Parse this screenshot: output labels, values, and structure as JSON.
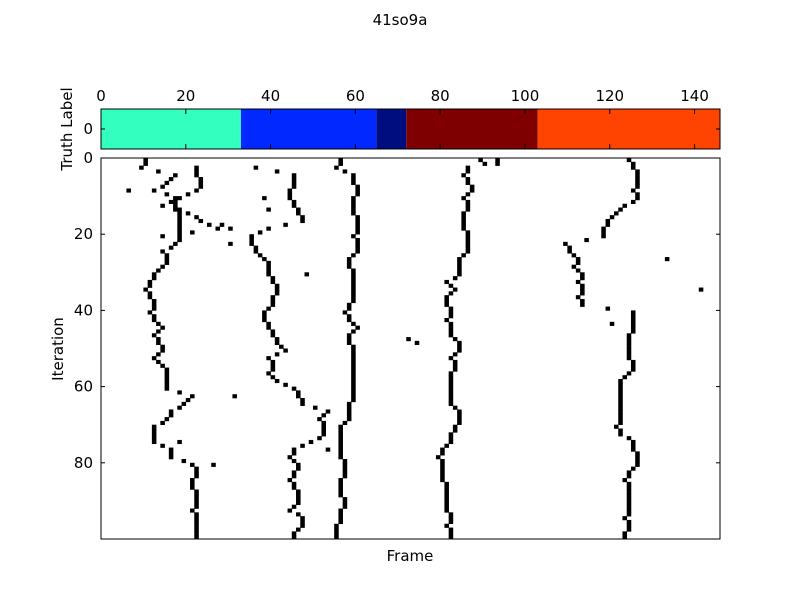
{
  "figure": {
    "title": "41so9a"
  },
  "chart_data": [
    {
      "type": "heatmap",
      "name": "truth-label-strip",
      "ylabel": "Truth Label",
      "xlim": [
        0,
        146
      ],
      "xticks": [
        0,
        20,
        40,
        60,
        80,
        100,
        120,
        140
      ],
      "xtick_labels": [
        "0",
        "20",
        "40",
        "60",
        "80",
        "100",
        "120",
        "140"
      ],
      "xticks_position": "top",
      "yticks": [
        0
      ],
      "ytick_labels": [
        "0"
      ],
      "segments": [
        {
          "start": 0,
          "end": 33,
          "color": "#33ffbf"
        },
        {
          "start": 33,
          "end": 65,
          "color": "#0028ff"
        },
        {
          "start": 65,
          "end": 72,
          "color": "#000d7f"
        },
        {
          "start": 72,
          "end": 103,
          "color": "#7f0000"
        },
        {
          "start": 103,
          "end": 146,
          "color": "#ff4300"
        }
      ]
    },
    {
      "type": "heatmap",
      "name": "iteration-frame-matrix",
      "xlabel": "Frame",
      "ylabel": "Iteration",
      "xlim": [
        0,
        146
      ],
      "ylim": [
        0,
        100
      ],
      "y_inverted": true,
      "yticks": [
        0,
        20,
        40,
        60,
        80
      ],
      "ytick_labels": [
        "0",
        "20",
        "40",
        "60",
        "80"
      ],
      "cell_color": "#000000",
      "background": "#ffffff",
      "traces": [
        {
          "start": 0,
          "path": [
            [
              0,
              10
            ],
            [
              2,
              9
            ],
            [
              4,
              17
            ],
            [
              6,
              15
            ],
            [
              8,
              12
            ],
            [
              10,
              18
            ],
            [
              12,
              14
            ],
            [
              14,
              20
            ],
            [
              16,
              23
            ],
            [
              18,
              27
            ],
            [
              20,
              14
            ]
          ]
        },
        {
          "start": 0,
          "path": [
            [
              2,
              22
            ],
            [
              4,
              22
            ],
            [
              6,
              23
            ],
            [
              8,
              22
            ],
            [
              10,
              17
            ],
            [
              12,
              17
            ],
            [
              14,
              18
            ],
            [
              16,
              18
            ],
            [
              18,
              18
            ],
            [
              20,
              18
            ],
            [
              22,
              17
            ],
            [
              24,
              14
            ],
            [
              26,
              15
            ],
            [
              28,
              14
            ],
            [
              30,
              12
            ],
            [
              32,
              11
            ],
            [
              34,
              10
            ],
            [
              36,
              11
            ],
            [
              38,
              12
            ],
            [
              40,
              11
            ],
            [
              42,
              12
            ],
            [
              44,
              14
            ],
            [
              46,
              12
            ],
            [
              48,
              13
            ],
            [
              50,
              14
            ],
            [
              52,
              12
            ],
            [
              54,
              14
            ],
            [
              56,
              15
            ],
            [
              58,
              15
            ],
            [
              60,
              15
            ],
            [
              62,
              21
            ],
            [
              64,
              19
            ],
            [
              66,
              16
            ],
            [
              68,
              15
            ],
            [
              70,
              12
            ],
            [
              72,
              12
            ],
            [
              74,
              12
            ],
            [
              76,
              16
            ],
            [
              78,
              16
            ],
            [
              80,
              21
            ],
            [
              82,
              22
            ],
            [
              84,
              21
            ],
            [
              86,
              21
            ],
            [
              88,
              22
            ],
            [
              90,
              22
            ],
            [
              92,
              21
            ],
            [
              94,
              22
            ],
            [
              96,
              22
            ],
            [
              98,
              22
            ],
            [
              99,
              22
            ]
          ]
        },
        {
          "start": 0,
          "path": [
            [
              2,
              36
            ],
            [
              4,
              45
            ],
            [
              6,
              45
            ],
            [
              8,
              44
            ],
            [
              10,
              44
            ],
            [
              12,
              45
            ],
            [
              14,
              46
            ],
            [
              16,
              47
            ],
            [
              18,
              39
            ],
            [
              20,
              35
            ],
            [
              22,
              35
            ],
            [
              24,
              36
            ],
            [
              26,
              38
            ],
            [
              28,
              39
            ],
            [
              30,
              39
            ],
            [
              32,
              40
            ],
            [
              34,
              41
            ],
            [
              36,
              40
            ],
            [
              38,
              40
            ],
            [
              40,
              38
            ],
            [
              42,
              38
            ],
            [
              44,
              39
            ],
            [
              46,
              40
            ],
            [
              48,
              41
            ],
            [
              50,
              43
            ],
            [
              52,
              39
            ],
            [
              54,
              40
            ],
            [
              56,
              39
            ],
            [
              58,
              41
            ],
            [
              60,
              45
            ],
            [
              62,
              46
            ],
            [
              64,
              47
            ],
            [
              66,
              53
            ],
            [
              68,
              51
            ],
            [
              70,
              52
            ],
            [
              72,
              52
            ],
            [
              74,
              49
            ],
            [
              76,
              45
            ],
            [
              78,
              44
            ],
            [
              80,
              46
            ],
            [
              82,
              45
            ],
            [
              84,
              44
            ],
            [
              86,
              45
            ],
            [
              88,
              46
            ],
            [
              90,
              46
            ],
            [
              92,
              44
            ],
            [
              94,
              47
            ],
            [
              96,
              47
            ],
            [
              98,
              45
            ],
            [
              99,
              45
            ]
          ]
        },
        {
          "start": 0,
          "path": [
            [
              0,
              56
            ],
            [
              2,
              55
            ],
            [
              4,
              59
            ],
            [
              6,
              59
            ],
            [
              8,
              60
            ],
            [
              10,
              59
            ],
            [
              12,
              59
            ],
            [
              14,
              59
            ],
            [
              16,
              60
            ],
            [
              18,
              60
            ],
            [
              20,
              59
            ],
            [
              22,
              60
            ],
            [
              24,
              60
            ],
            [
              26,
              58
            ],
            [
              28,
              58
            ],
            [
              30,
              59
            ],
            [
              32,
              59
            ],
            [
              34,
              59
            ],
            [
              36,
              59
            ],
            [
              38,
              58
            ],
            [
              40,
              57
            ],
            [
              42,
              58
            ],
            [
              44,
              60
            ],
            [
              46,
              58
            ],
            [
              48,
              58
            ],
            [
              50,
              59
            ],
            [
              52,
              59
            ],
            [
              54,
              59
            ],
            [
              56,
              59
            ],
            [
              58,
              59
            ],
            [
              60,
              59
            ],
            [
              62,
              59
            ],
            [
              64,
              58
            ],
            [
              66,
              58
            ],
            [
              68,
              58
            ],
            [
              70,
              56
            ],
            [
              72,
              56
            ],
            [
              74,
              56
            ],
            [
              76,
              56
            ],
            [
              78,
              56
            ],
            [
              80,
              57
            ],
            [
              82,
              57
            ],
            [
              84,
              56
            ],
            [
              86,
              56
            ],
            [
              88,
              56
            ],
            [
              90,
              57
            ],
            [
              92,
              56
            ],
            [
              94,
              56
            ],
            [
              96,
              55
            ],
            [
              98,
              55
            ],
            [
              99,
              55
            ]
          ]
        },
        {
          "start": 0,
          "path": [
            [
              0,
              93
            ],
            [
              2,
              86
            ],
            [
              4,
              85
            ],
            [
              6,
              86
            ],
            [
              8,
              87
            ],
            [
              10,
              85
            ],
            [
              12,
              86
            ],
            [
              14,
              85
            ],
            [
              16,
              85
            ],
            [
              18,
              85
            ],
            [
              20,
              86
            ],
            [
              22,
              86
            ],
            [
              24,
              86
            ],
            [
              26,
              84
            ],
            [
              28,
              84
            ],
            [
              30,
              84
            ],
            [
              32,
              81
            ],
            [
              34,
              83
            ],
            [
              36,
              81
            ],
            [
              38,
              81
            ],
            [
              40,
              82
            ],
            [
              42,
              81
            ],
            [
              44,
              82
            ],
            [
              46,
              82
            ],
            [
              48,
              84
            ],
            [
              50,
              84
            ],
            [
              52,
              82
            ],
            [
              54,
              83
            ],
            [
              56,
              82
            ],
            [
              58,
              82
            ],
            [
              60,
              82
            ],
            [
              62,
              82
            ],
            [
              64,
              82
            ],
            [
              66,
              84
            ],
            [
              68,
              84
            ],
            [
              70,
              83
            ],
            [
              72,
              82
            ],
            [
              74,
              82
            ],
            [
              76,
              80
            ],
            [
              78,
              79
            ],
            [
              80,
              80
            ],
            [
              82,
              80
            ],
            [
              84,
              80
            ],
            [
              86,
              81
            ],
            [
              88,
              81
            ],
            [
              90,
              81
            ],
            [
              92,
              81
            ],
            [
              94,
              82
            ],
            [
              96,
              81
            ],
            [
              98,
              82
            ],
            [
              99,
              82
            ]
          ]
        },
        {
          "start": 0,
          "path": [
            [
              0,
              124
            ],
            [
              2,
              125
            ],
            [
              4,
              126
            ],
            [
              6,
              126
            ],
            [
              8,
              125
            ],
            [
              10,
              126
            ],
            [
              12,
              123
            ],
            [
              14,
              121
            ],
            [
              16,
              119
            ],
            [
              18,
              118
            ],
            [
              20,
              118
            ],
            [
              22,
              109
            ],
            [
              24,
              110
            ],
            [
              26,
              112
            ],
            [
              28,
              111
            ],
            [
              30,
              113
            ],
            [
              32,
              112
            ],
            [
              34,
              113
            ],
            [
              36,
              112
            ],
            [
              38,
              113
            ],
            [
              40,
              125
            ],
            [
              42,
              125
            ],
            [
              44,
              125
            ],
            [
              46,
              124
            ],
            [
              48,
              124
            ],
            [
              50,
              124
            ],
            [
              52,
              124
            ],
            [
              54,
              125
            ],
            [
              56,
              124
            ],
            [
              58,
              122
            ],
            [
              60,
              122
            ],
            [
              62,
              122
            ],
            [
              64,
              122
            ],
            [
              66,
              122
            ],
            [
              68,
              122
            ],
            [
              70,
              121
            ],
            [
              72,
              122
            ],
            [
              74,
              125
            ],
            [
              76,
              125
            ],
            [
              78,
              126
            ],
            [
              80,
              126
            ],
            [
              82,
              124
            ],
            [
              84,
              123
            ],
            [
              86,
              124
            ],
            [
              88,
              124
            ],
            [
              90,
              124
            ],
            [
              92,
              124
            ],
            [
              94,
              123
            ],
            [
              96,
              124
            ],
            [
              98,
              123
            ],
            [
              99,
              123
            ]
          ]
        }
      ],
      "isolated_cells": [
        [
          0,
          89
        ],
        [
          1,
          93
        ],
        [
          8,
          6
        ],
        [
          10,
          38
        ],
        [
          13,
          39
        ],
        [
          17,
          28
        ],
        [
          18,
          30
        ],
        [
          22,
          30
        ],
        [
          26,
          133
        ],
        [
          34,
          141
        ],
        [
          30,
          48
        ],
        [
          47,
          72
        ],
        [
          48,
          74
        ],
        [
          43,
          120
        ],
        [
          62,
          31
        ],
        [
          74,
          18
        ],
        [
          76,
          53
        ],
        [
          80,
          26
        ]
      ]
    }
  ]
}
